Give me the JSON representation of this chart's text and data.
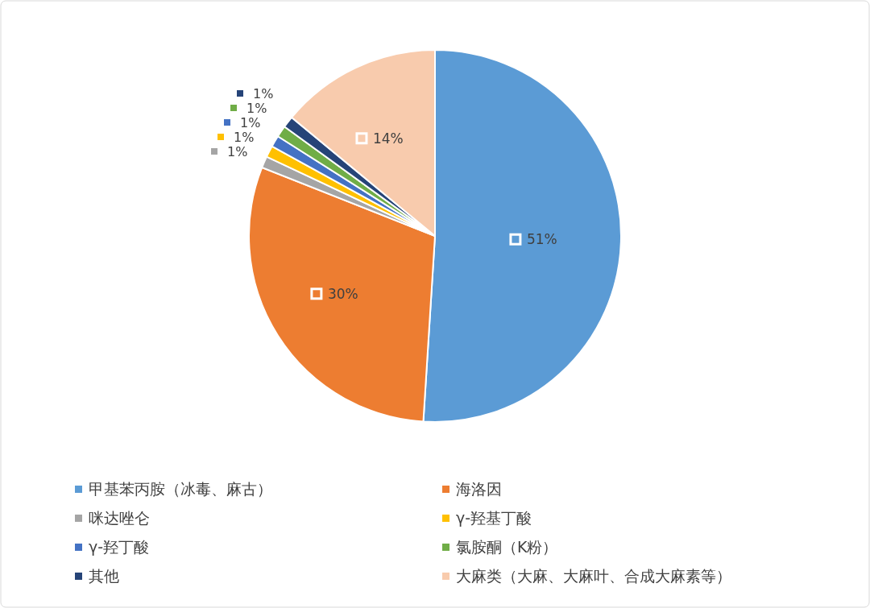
{
  "chart_data": {
    "type": "pie",
    "categories": [
      "甲基苯丙胺（冰毒、麻古）",
      "海洛因",
      "咪达唑仑",
      "γ-羟基丁酸",
      "γ-羟丁酸",
      "氯胺酮（K粉）",
      "其他",
      "大麻类（大麻、大麻叶、合成大麻素等）"
    ],
    "values": [
      51,
      30,
      1,
      1,
      1,
      1,
      1,
      14
    ],
    "value_labels": [
      "51%",
      "30%",
      "1%",
      "1%",
      "1%",
      "1%",
      "1%",
      "14%"
    ],
    "colors": [
      "#5b9bd5",
      "#ed7d31",
      "#a5a5a5",
      "#ffc000",
      "#4472c4",
      "#70ad47",
      "#264478",
      "#f8cbad"
    ],
    "legend": "bottom"
  }
}
